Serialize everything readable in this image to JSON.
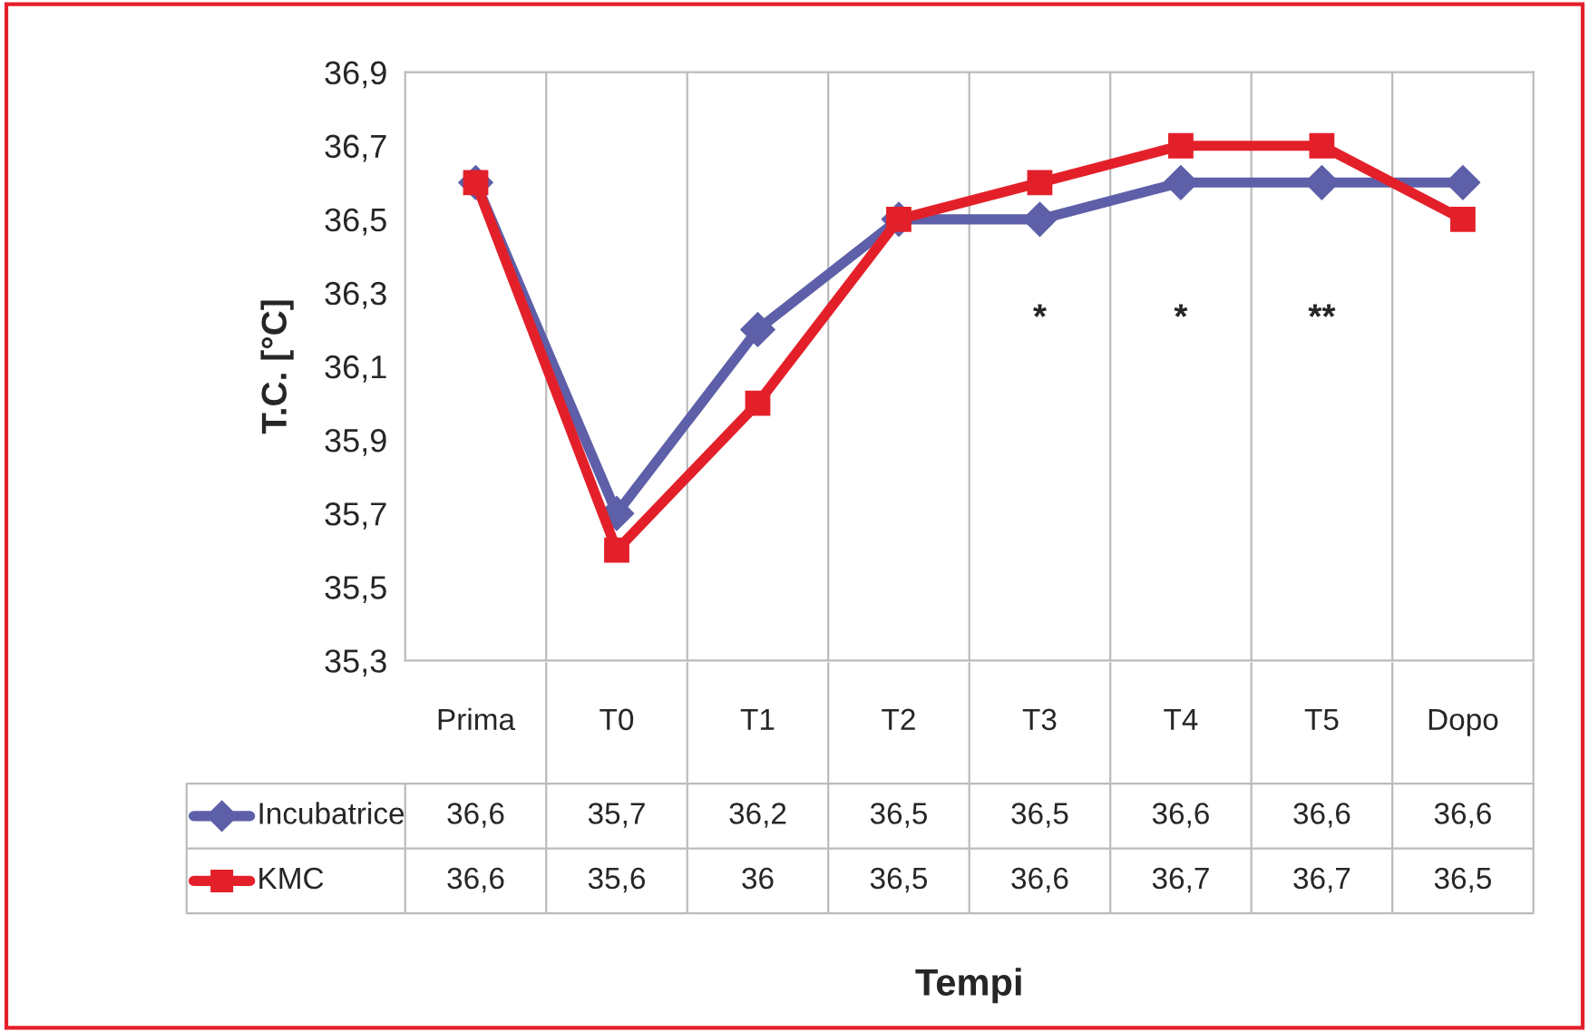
{
  "chart_data": {
    "type": "line",
    "ylabel": "T.C. [°C]",
    "categories": [
      "Prima",
      "T0",
      "T1",
      "T2",
      "T3",
      "T4",
      "T5",
      "Dopo"
    ],
    "series": [
      {
        "name": "Incubatrice",
        "color": "#5d5fa8",
        "marker": "diamond",
        "values": [
          36.6,
          35.7,
          36.2,
          36.5,
          36.5,
          36.6,
          36.6,
          36.6
        ],
        "value_labels": [
          "36,6",
          "35,7",
          "36,2",
          "36,5",
          "36,5",
          "36,6",
          "36,6",
          "36,6"
        ]
      },
      {
        "name": "KMC",
        "color": "#e3202a",
        "marker": "square",
        "values": [
          36.6,
          35.6,
          36,
          36.5,
          36.6,
          36.7,
          36.7,
          36.5
        ],
        "value_labels": [
          "36,6",
          "35,6",
          "36",
          "36,5",
          "36,6",
          "36,7",
          "36,7",
          "36,5"
        ]
      }
    ],
    "ylim": [
      35.3,
      36.9
    ],
    "yticks": [
      {
        "value": 35.3,
        "label": "35,3"
      },
      {
        "value": 35.5,
        "label": "35,5"
      },
      {
        "value": 35.7,
        "label": "35,7"
      },
      {
        "value": 35.9,
        "label": "35,9"
      },
      {
        "value": 36.1,
        "label": "36,1"
      },
      {
        "value": 36.3,
        "label": "36,3"
      },
      {
        "value": 36.5,
        "label": "36,5"
      },
      {
        "value": 36.7,
        "label": "36,7"
      },
      {
        "value": 36.9,
        "label": "36,9"
      }
    ],
    "annotations": [
      "*",
      "*",
      "**",
      "Tempi"
    ],
    "legend": "bottom left",
    "grid": "x",
    "line_style": "solid"
  }
}
